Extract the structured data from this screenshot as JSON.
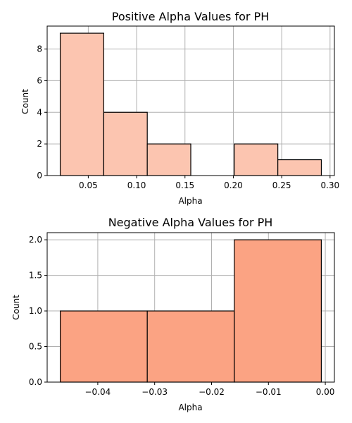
{
  "chart_data": [
    {
      "type": "bar",
      "title": "Positive Alpha Values for PH",
      "xlabel": "Alpha",
      "ylabel": "Count",
      "bins": [
        {
          "x0": 0.021,
          "x1": 0.066,
          "count": 9
        },
        {
          "x0": 0.066,
          "x1": 0.111,
          "count": 4
        },
        {
          "x0": 0.111,
          "x1": 0.156,
          "count": 2
        },
        {
          "x0": 0.156,
          "x1": 0.201,
          "count": 0
        },
        {
          "x0": 0.201,
          "x1": 0.246,
          "count": 2
        },
        {
          "x0": 0.246,
          "x1": 0.291,
          "count": 1
        }
      ],
      "xlim": [
        0.0075,
        0.3045
      ],
      "ylim": [
        0,
        9.45
      ],
      "xticks": [
        0.05,
        0.1,
        0.15,
        0.2,
        0.25,
        0.3
      ],
      "xtick_labels": [
        "0.05",
        "0.10",
        "0.15",
        "0.20",
        "0.25",
        "0.30"
      ],
      "yticks": [
        0,
        2,
        4,
        6,
        8
      ],
      "ytick_labels": [
        "0",
        "2",
        "4",
        "6",
        "8"
      ],
      "grid": true,
      "color": "#fcc5b0"
    },
    {
      "type": "bar",
      "title": "Negative Alpha Values for PH",
      "xlabel": "Alpha",
      "ylabel": "Count",
      "bins": [
        {
          "x0": -0.0466,
          "x1": -0.0313,
          "count": 1
        },
        {
          "x0": -0.0313,
          "x1": -0.016,
          "count": 1
        },
        {
          "x0": -0.016,
          "x1": -0.0007,
          "count": 2
        }
      ],
      "xlim": [
        -0.0489,
        0.0016
      ],
      "ylim": [
        0,
        2.1
      ],
      "xticks": [
        -0.04,
        -0.03,
        -0.02,
        -0.01,
        0.0
      ],
      "xtick_labels": [
        "−0.04",
        "−0.03",
        "−0.02",
        "−0.01",
        "0.00"
      ],
      "yticks": [
        0,
        0.5,
        1.0,
        1.5,
        2.0
      ],
      "ytick_labels": [
        "0.0",
        "0.5",
        "1.0",
        "1.5",
        "2.0"
      ],
      "grid": true,
      "color": "#fba383"
    }
  ]
}
